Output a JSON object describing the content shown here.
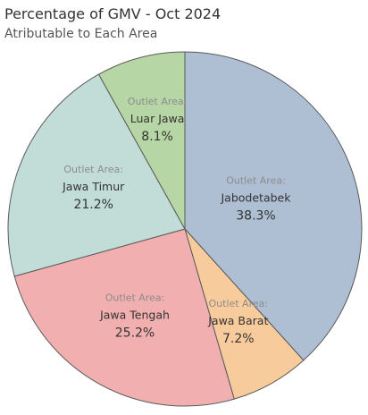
{
  "header": {
    "title": "Percentage of GMV - Oct 2024",
    "subtitle": "Atributable to Each Area"
  },
  "chart_data": {
    "type": "pie",
    "title": "Percentage of GMV - Oct 2024",
    "subtitle": "Atributable to Each Area",
    "label_prefix": "Outlet Area:",
    "start": "12 o'clock, clockwise",
    "slices": [
      {
        "label": "Jabodetabek",
        "value": 38.3,
        "display": "38.3%",
        "color": "#aebfd4"
      },
      {
        "label": "Jawa Barat",
        "value": 7.2,
        "display": "7.2%",
        "color": "#f8cb9c"
      },
      {
        "label": "Jawa Tengah",
        "value": 25.2,
        "display": "25.2%",
        "color": "#f1b0af"
      },
      {
        "label": "Jawa Timur",
        "value": 21.2,
        "display": "21.2%",
        "color": "#c2ddd8"
      },
      {
        "label": "Luar Jawa",
        "value": 8.1,
        "display": "8.1%",
        "color": "#b7d6a5"
      }
    ]
  }
}
